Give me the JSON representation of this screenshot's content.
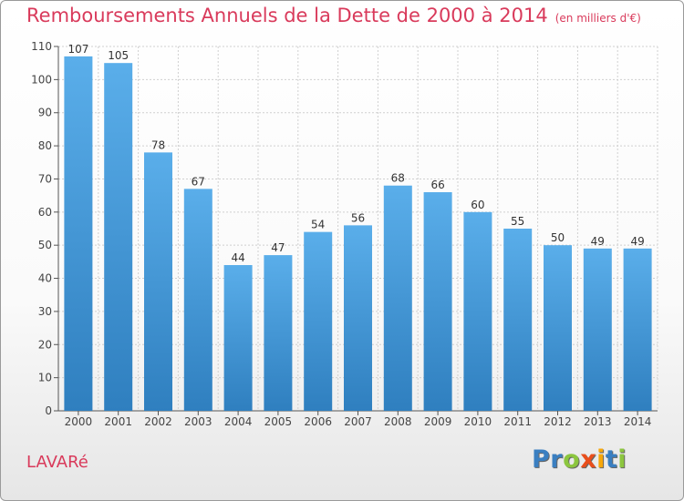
{
  "title": "Remboursements Annuels de la Dette de 2000 à 2014",
  "subtitle": "(en milliers d'€)",
  "commune": "LAVARé",
  "brand": {
    "text": "Proxiti",
    "letters": [
      {
        "ch": "P",
        "color": "#3a7fc1"
      },
      {
        "ch": "r",
        "color": "#3a7fc1"
      },
      {
        "ch": "o",
        "color": "#8cc63f"
      },
      {
        "ch": "x",
        "color": "#e94e1b"
      },
      {
        "ch": "i",
        "color": "#f7a70a"
      },
      {
        "ch": "t",
        "color": "#3a7fc1"
      },
      {
        "ch": "i",
        "color": "#8cc63f"
      }
    ]
  },
  "colors": {
    "title": "#d93a5b",
    "bar_top": "#5aaeea",
    "bar_bottom": "#2f7fbf"
  },
  "chart_data": {
    "type": "bar",
    "title": "Remboursements Annuels de la Dette de 2000 à 2014",
    "subtitle": "(en milliers d'€)",
    "xlabel": "",
    "ylabel": "",
    "categories": [
      "2000",
      "2001",
      "2002",
      "2003",
      "2004",
      "2005",
      "2006",
      "2007",
      "2008",
      "2009",
      "2010",
      "2011",
      "2012",
      "2013",
      "2014"
    ],
    "values": [
      107,
      105,
      78,
      67,
      44,
      47,
      54,
      56,
      68,
      66,
      60,
      55,
      50,
      49,
      49
    ],
    "ylim": [
      0,
      110
    ],
    "yticks": [
      0,
      10,
      20,
      30,
      40,
      50,
      60,
      70,
      80,
      90,
      100,
      110
    ],
    "grid": true,
    "data_labels": true
  }
}
